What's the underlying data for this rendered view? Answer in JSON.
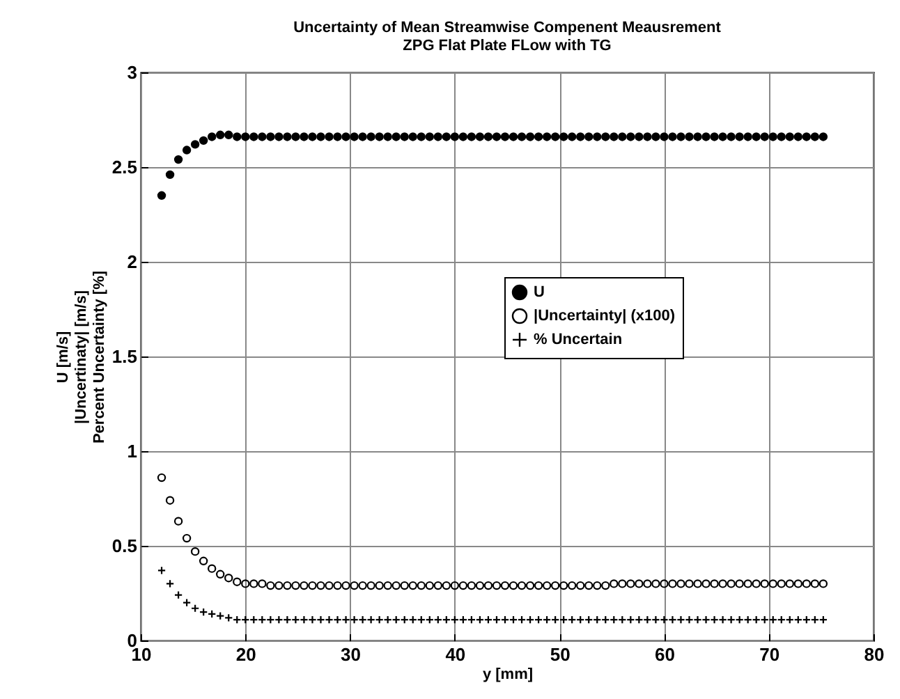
{
  "chart_data": {
    "type": "scatter",
    "title": "Uncertainty of Mean Streamwise Compenent Meausrement\nZPG Flat Plate FLow with TG",
    "xlabel": "y [mm]",
    "ylabel": "U [m/s]\n|Uncertinaty| [m/s]\nPercent Uncertainty [%]",
    "x": [
      12,
      12.8,
      13.6,
      14.4,
      15.2,
      16,
      16.8,
      17.6,
      18.4,
      19.2,
      20,
      20.8,
      21.6,
      22.4,
      23.2,
      24,
      24.8,
      25.6,
      26.4,
      27.2,
      28,
      28.8,
      29.6,
      30.4,
      31.2,
      32,
      32.8,
      33.6,
      34.4,
      35.2,
      36,
      36.8,
      37.6,
      38.4,
      39.2,
      40,
      40.8,
      41.6,
      42.4,
      43.2,
      44,
      44.8,
      45.6,
      46.4,
      47.2,
      48,
      48.8,
      49.6,
      50.4,
      51.2,
      52,
      52.8,
      53.6,
      54.4,
      55.2,
      56,
      56.8,
      57.6,
      58.4,
      59.2,
      60,
      60.8,
      61.6,
      62.4,
      63.2,
      64,
      64.8,
      65.6,
      66.4,
      67.2,
      68,
      68.8,
      69.6,
      70.4,
      71.2,
      72,
      72.8,
      73.6,
      74.4,
      75.2
    ],
    "series": [
      {
        "name": "U",
        "color": "#000000",
        "marker": "point",
        "values": [
          2.35,
          2.46,
          2.54,
          2.59,
          2.62,
          2.64,
          2.66,
          2.67,
          2.67,
          2.66,
          2.66,
          2.66,
          2.66,
          2.66,
          2.66,
          2.66,
          2.66,
          2.66,
          2.66,
          2.66,
          2.66,
          2.66,
          2.66,
          2.66,
          2.66,
          2.66,
          2.66,
          2.66,
          2.66,
          2.66,
          2.66,
          2.66,
          2.66,
          2.66,
          2.66,
          2.66,
          2.66,
          2.66,
          2.66,
          2.66,
          2.66,
          2.66,
          2.66,
          2.66,
          2.66,
          2.66,
          2.66,
          2.66,
          2.66,
          2.66,
          2.66,
          2.66,
          2.66,
          2.66,
          2.66,
          2.66,
          2.66,
          2.66,
          2.66,
          2.66,
          2.66,
          2.66,
          2.66,
          2.66,
          2.66,
          2.66,
          2.66,
          2.66,
          2.66,
          2.66,
          2.66,
          2.66,
          2.66,
          2.66,
          2.66,
          2.66,
          2.66,
          2.66,
          2.66,
          2.66
        ]
      },
      {
        "name": "|Uncertainty| (x100)",
        "color": "#000000",
        "marker": "circle",
        "values": [
          0.86,
          0.74,
          0.63,
          0.54,
          0.47,
          0.42,
          0.38,
          0.35,
          0.33,
          0.31,
          0.3,
          0.3,
          0.3,
          0.29,
          0.29,
          0.29,
          0.29,
          0.29,
          0.29,
          0.29,
          0.29,
          0.29,
          0.29,
          0.29,
          0.29,
          0.29,
          0.29,
          0.29,
          0.29,
          0.29,
          0.29,
          0.29,
          0.29,
          0.29,
          0.29,
          0.29,
          0.29,
          0.29,
          0.29,
          0.29,
          0.29,
          0.29,
          0.29,
          0.29,
          0.29,
          0.29,
          0.29,
          0.29,
          0.29,
          0.29,
          0.29,
          0.29,
          0.29,
          0.29,
          0.3,
          0.3,
          0.3,
          0.3,
          0.3,
          0.3,
          0.3,
          0.3,
          0.3,
          0.3,
          0.3,
          0.3,
          0.3,
          0.3,
          0.3,
          0.3,
          0.3,
          0.3,
          0.3,
          0.3,
          0.3,
          0.3,
          0.3,
          0.3,
          0.3,
          0.3
        ]
      },
      {
        "name": "% Uncertain",
        "color": "#000000",
        "marker": "cross",
        "values": [
          0.37,
          0.3,
          0.24,
          0.2,
          0.17,
          0.15,
          0.14,
          0.13,
          0.12,
          0.11,
          0.11,
          0.11,
          0.11,
          0.11,
          0.11,
          0.11,
          0.11,
          0.11,
          0.11,
          0.11,
          0.11,
          0.11,
          0.11,
          0.11,
          0.11,
          0.11,
          0.11,
          0.11,
          0.11,
          0.11,
          0.11,
          0.11,
          0.11,
          0.11,
          0.11,
          0.11,
          0.11,
          0.11,
          0.11,
          0.11,
          0.11,
          0.11,
          0.11,
          0.11,
          0.11,
          0.11,
          0.11,
          0.11,
          0.11,
          0.11,
          0.11,
          0.11,
          0.11,
          0.11,
          0.11,
          0.11,
          0.11,
          0.11,
          0.11,
          0.11,
          0.11,
          0.11,
          0.11,
          0.11,
          0.11,
          0.11,
          0.11,
          0.11,
          0.11,
          0.11,
          0.11,
          0.11,
          0.11,
          0.11,
          0.11,
          0.11,
          0.11,
          0.11,
          0.11,
          0.11
        ]
      }
    ],
    "xlim": [
      10,
      80
    ],
    "xticks": [
      10,
      20,
      30,
      40,
      50,
      60,
      70,
      80
    ],
    "ylim": [
      0,
      3
    ],
    "yticks": [
      {
        "value": 0,
        "label": "0"
      },
      0.5,
      {
        "value": 1,
        "label": "1"
      },
      1.5,
      {
        "value": 2,
        "label": "2"
      },
      2.5,
      {
        "value": 3,
        "label": "3"
      }
    ],
    "grid": true,
    "legend": "right"
  }
}
